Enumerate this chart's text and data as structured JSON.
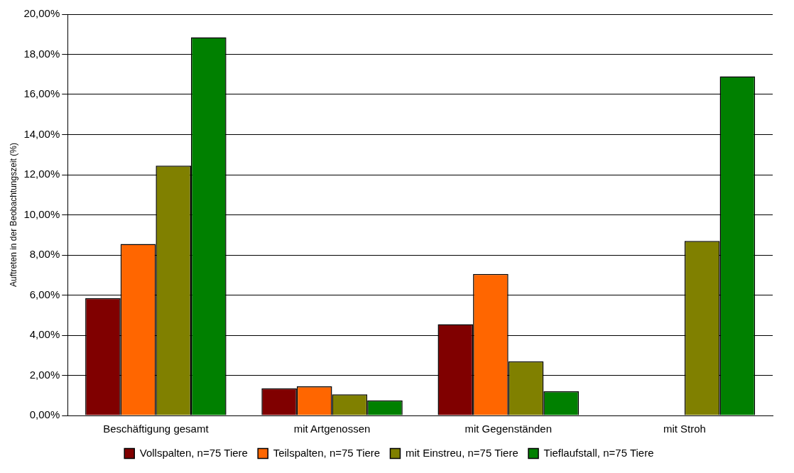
{
  "chart_data": {
    "type": "bar",
    "ylabel": "Auftreten in der Beobachtungszeit (%)",
    "categories": [
      "Beschäftigung gesamt",
      "mit Artgenossen",
      "mit Gegenständen",
      "mit Stroh"
    ],
    "series": [
      {
        "name": "Vollspalten, n=75 Tiere",
        "color": "#800000",
        "values": [
          5.85,
          1.35,
          4.55,
          0
        ]
      },
      {
        "name": "Teilspalten, n=75 Tiere",
        "color": "#ff6600",
        "values": [
          8.55,
          1.45,
          7.05,
          0
        ]
      },
      {
        "name": "mit Einstreu, n=75 Tiere",
        "color": "#808000",
        "values": [
          12.45,
          1.05,
          2.7,
          8.7
        ]
      },
      {
        "name": "Tieflaufstall, n=75 Tiere",
        "color": "#008000",
        "values": [
          18.85,
          0.75,
          1.2,
          16.9
        ]
      }
    ],
    "ylim": [
      0,
      20
    ],
    "yticks": [
      {
        "value": 0,
        "label": "0,00%"
      },
      {
        "value": 2,
        "label": "2,00%"
      },
      {
        "value": 4,
        "label": "4,00%"
      },
      {
        "value": 6,
        "label": "6,00%"
      },
      {
        "value": 8,
        "label": "8,00%"
      },
      {
        "value": 10,
        "label": "10,00%"
      },
      {
        "value": 12,
        "label": "12,00%"
      },
      {
        "value": 14,
        "label": "14,00%"
      },
      {
        "value": 16,
        "label": "16,00%"
      },
      {
        "value": 18,
        "label": "18,00%"
      },
      {
        "value": 20,
        "label": "20,00%"
      }
    ],
    "grid": "y",
    "legend": "bottom"
  }
}
